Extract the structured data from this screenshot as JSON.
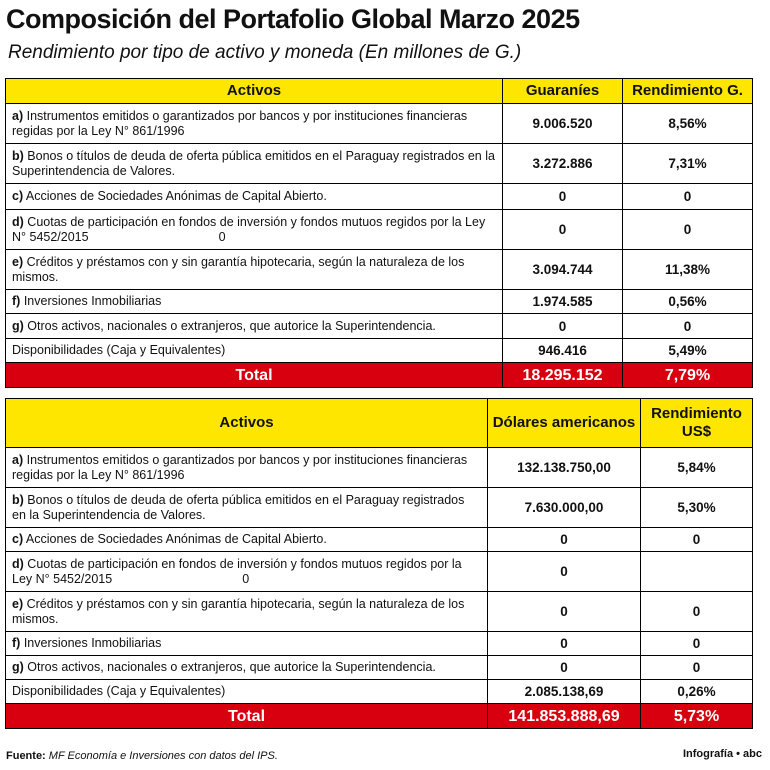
{
  "header": {
    "title": "Composición del Portafolio Global Marzo 2025",
    "subtitle": "Rendimiento por tipo de activo y moneda (En millones de G.)"
  },
  "tables": [
    {
      "columns": [
        "Activos",
        "Guaraníes",
        "Rendimiento G."
      ],
      "rows": [
        {
          "key": "a)",
          "text": "Instrumentos emitidos o garantizados por bancos y por instituciones financieras regidas por la Ley N° 861/1996",
          "amount": "9.006.520",
          "yield": "8,56%"
        },
        {
          "key": "b)",
          "text": "Bonos o títulos de deuda de oferta pública emitidos en el Paraguay registrados en la Superintendencia de Valores.",
          "amount": "3.272.886",
          "yield": "7,31%"
        },
        {
          "key": "c)",
          "text": "Acciones de Sociedades Anónimas de Capital Abierto.",
          "amount": "0",
          "yield": "0"
        },
        {
          "key": "d)",
          "text": "Cuotas de participación en fondos de inversión y fondos mutuos regidos por la Ley N° 5452/2015",
          "extra": "0",
          "amount": "0",
          "yield": "0"
        },
        {
          "key": "e)",
          "text": "Créditos y préstamos con y sin garantía hipotecaria, según la naturaleza de los mismos.",
          "amount": "3.094.744",
          "yield": "11,38%"
        },
        {
          "key": "f)",
          "text": "Inversiones Inmobiliarias",
          "amount": "1.974.585",
          "yield": "0,56%"
        },
        {
          "key": "g)",
          "text": "Otros activos, nacionales o extranjeros, que autorice la Superintendencia.",
          "amount": "0",
          "yield": "0"
        },
        {
          "text": "Disponibilidades (Caja y Equivalentes)",
          "amount": "946.416",
          "yield": "5,49%"
        }
      ],
      "total": {
        "label": "Total",
        "amount": "18.295.152",
        "yield": "7,79%"
      }
    },
    {
      "columns": [
        "Activos",
        "Dólares americanos",
        "Rendimiento US$"
      ],
      "rows": [
        {
          "key": "a)",
          "text": "Instrumentos emitidos o garantizados por bancos y por instituciones financieras regidas por la Ley N° 861/1996",
          "amount": "132.138.750,00",
          "yield": "5,84%"
        },
        {
          "key": "b)",
          "text": "Bonos o títulos de deuda de oferta pública emitidos en el Paraguay registrados en la Superintendencia de Valores.",
          "amount": "7.630.000,00",
          "yield": "5,30%"
        },
        {
          "key": "c)",
          "text": "Acciones de Sociedades Anónimas de Capital Abierto.",
          "amount": "0",
          "yield": "0"
        },
        {
          "key": "d)",
          "text": "Cuotas de participación en fondos de inversión y fondos mutuos regidos por la Ley N° 5452/2015",
          "extra": "0",
          "amount": "0",
          "yield": null
        },
        {
          "key": "e)",
          "text": "Créditos y préstamos con y sin garantía hipotecaria, según la naturaleza de los mismos.",
          "amount": "0",
          "yield": "0"
        },
        {
          "key": "f)",
          "text": "Inversiones Inmobiliarias",
          "amount": "0",
          "yield": "0"
        },
        {
          "key": "g)",
          "text": "Otros activos, nacionales o extranjeros, que autorice la Superintendencia.",
          "amount": "0",
          "yield": "0"
        },
        {
          "text": "Disponibilidades (Caja y Equivalentes)",
          "amount": "2.085.138,69",
          "yield": "0,26%"
        }
      ],
      "total": {
        "label": "Total",
        "amount": "141.853.888,69",
        "yield": "5,73%"
      }
    }
  ],
  "footer": {
    "source_label": "Fuente:",
    "source": "MF Economía e Inversiones con datos del IPS.",
    "credit": "Infografía • abc"
  }
}
